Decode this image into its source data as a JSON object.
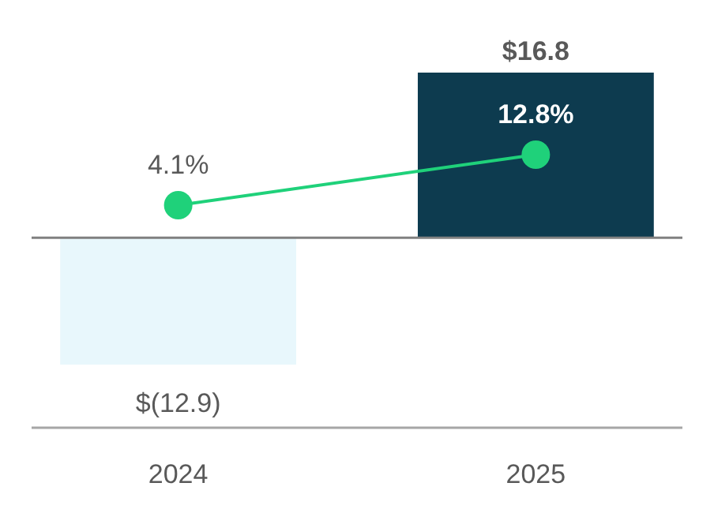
{
  "chart_data": {
    "type": "bar",
    "categories": [
      "2024",
      "2025"
    ],
    "series": [
      {
        "colors": [
          "#e8f7fc",
          "#0d3b4f"
        ],
        "values": [
          -12.9,
          16.8
        ],
        "value_labels": [
          "$(12.9)",
          "$16.8"
        ]
      },
      {
        "type": "line",
        "axis": "y2",
        "color": "#1fd17a",
        "marker": "circle",
        "values": [
          4.1,
          12.8
        ],
        "value_labels": [
          "4.1%",
          "12.8%"
        ]
      }
    ]
  }
}
